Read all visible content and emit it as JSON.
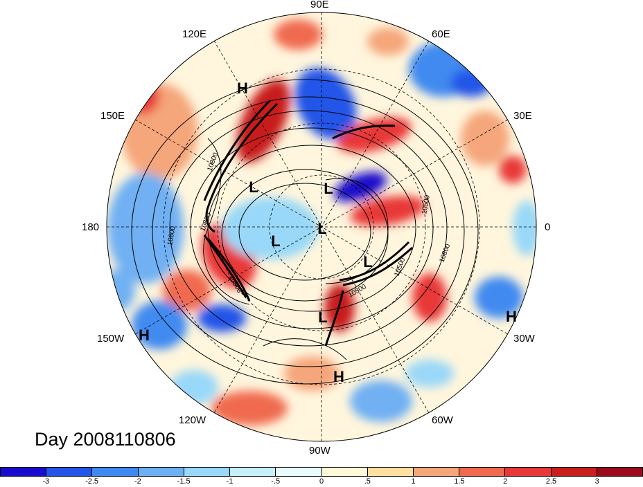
{
  "title": "Day 2008110806",
  "longitude_labels": {
    "e90": "90E",
    "e60": "60E",
    "e30": "30E",
    "lon0": "0",
    "w30": "30W",
    "w60": "60W",
    "w90": "90W",
    "w120": "120W",
    "w150": "150W",
    "lon180": "180",
    "e150": "150E",
    "e120": "120E"
  },
  "contour_labels": [
    "10800",
    "10800",
    "10800",
    "10500",
    "10500",
    "10800",
    "10500",
    "10500"
  ],
  "pressure_centers": [
    "H",
    "L",
    "L",
    "L",
    "L",
    "L",
    "L",
    "H",
    "H",
    "H"
  ],
  "colorbar": {
    "colors": [
      "#1a0ccc",
      "#2255e8",
      "#3f8af0",
      "#6fb0f3",
      "#99d8f8",
      "#c6f0fb",
      "#e8fbfd",
      "#fff9d8",
      "#ffe0a0",
      "#f5a67a",
      "#f06a50",
      "#e83838",
      "#c81e1e",
      "#9b0a1c"
    ],
    "tick_labels": [
      "-3",
      "-2.5",
      "-2",
      "-1.5",
      "-1",
      "-.5",
      "0",
      ".5",
      "1",
      "1.5",
      "2",
      "2.5",
      "3"
    ]
  }
}
